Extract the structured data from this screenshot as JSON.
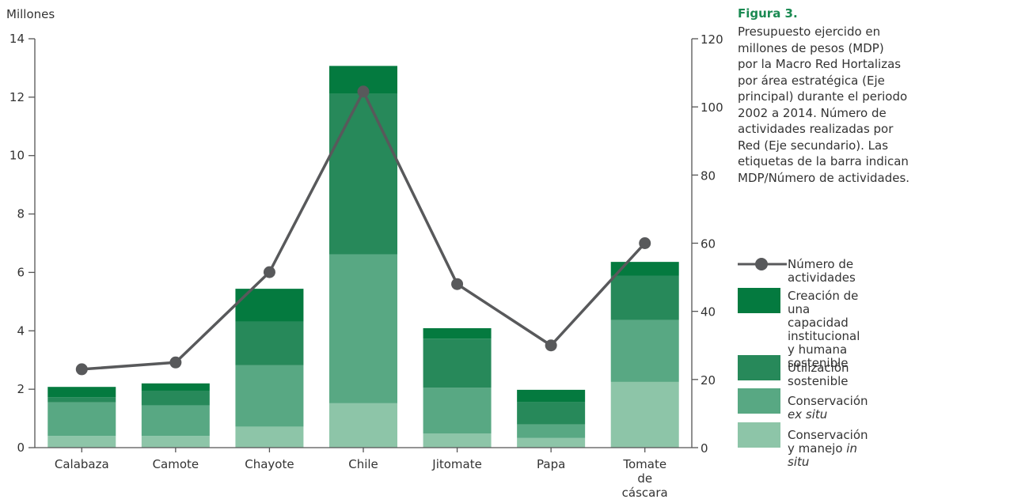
{
  "figure": {
    "title": "Figura 3.",
    "caption": "Presupuesto ejercido en\nmillones de pesos (MDP)\npor la Macro Red Hortalizas\npor área estratégica (Eje\nprincipal) durante el periodo\n2002 a 2014. Número de\nactividades realizadas por\nRed (Eje secundario). Las\netiquetas de la barra indican\nMDP/Número de actividades."
  },
  "legend": {
    "line": "Número de actividades",
    "s4": "Creación de una\ncapacidad institucional\ny humana sostenible",
    "s3": "Utilización sostenible",
    "s2_pre": "Conservación ",
    "s2_em": "ex situ",
    "s1_pre": "Conservación y manejo ",
    "s1_em": "in situ"
  },
  "colors": {
    "s1": "#8dc5a8",
    "s2": "#58a883",
    "s3": "#27895a",
    "s4": "#047a3f",
    "line": "#58595b",
    "axis": "#555555",
    "title": "#1a8a52"
  },
  "chart_data": {
    "type": "bar",
    "stacked": true,
    "ylabel": "Millones",
    "ylim": [
      0,
      14
    ],
    "yticks": [
      0,
      2,
      4,
      6,
      8,
      10,
      12,
      14
    ],
    "y2lim": [
      0,
      120
    ],
    "y2ticks": [
      0,
      20,
      40,
      60,
      80,
      100,
      120
    ],
    "categories": [
      "Calabaza",
      "Camote",
      "Chayote",
      "Chile",
      "Jitomate",
      "Papa",
      "Tomate\nde\ncáscara"
    ],
    "series": [
      {
        "name": "Conservación y manejo in situ",
        "axis": "left",
        "values": [
          0.4,
          0.4,
          0.72,
          1.52,
          0.48,
          0.33,
          2.25
        ]
      },
      {
        "name": "Conservación ex situ",
        "axis": "left",
        "values": [
          1.15,
          1.05,
          2.1,
          5.1,
          1.57,
          0.47,
          2.12
        ]
      },
      {
        "name": "Utilización sostenible",
        "axis": "left",
        "values": [
          0.18,
          0.5,
          1.5,
          5.5,
          1.68,
          0.76,
          1.52
        ]
      },
      {
        "name": "Creación de una capacidad institucional y humana sostenible",
        "axis": "left",
        "values": [
          0.35,
          0.25,
          1.12,
          0.95,
          0.36,
          0.42,
          0.47
        ]
      },
      {
        "name": "Número de actividades",
        "type": "line",
        "axis": "right",
        "values": [
          23,
          25,
          51.5,
          104.5,
          48,
          30,
          60
        ]
      }
    ]
  }
}
